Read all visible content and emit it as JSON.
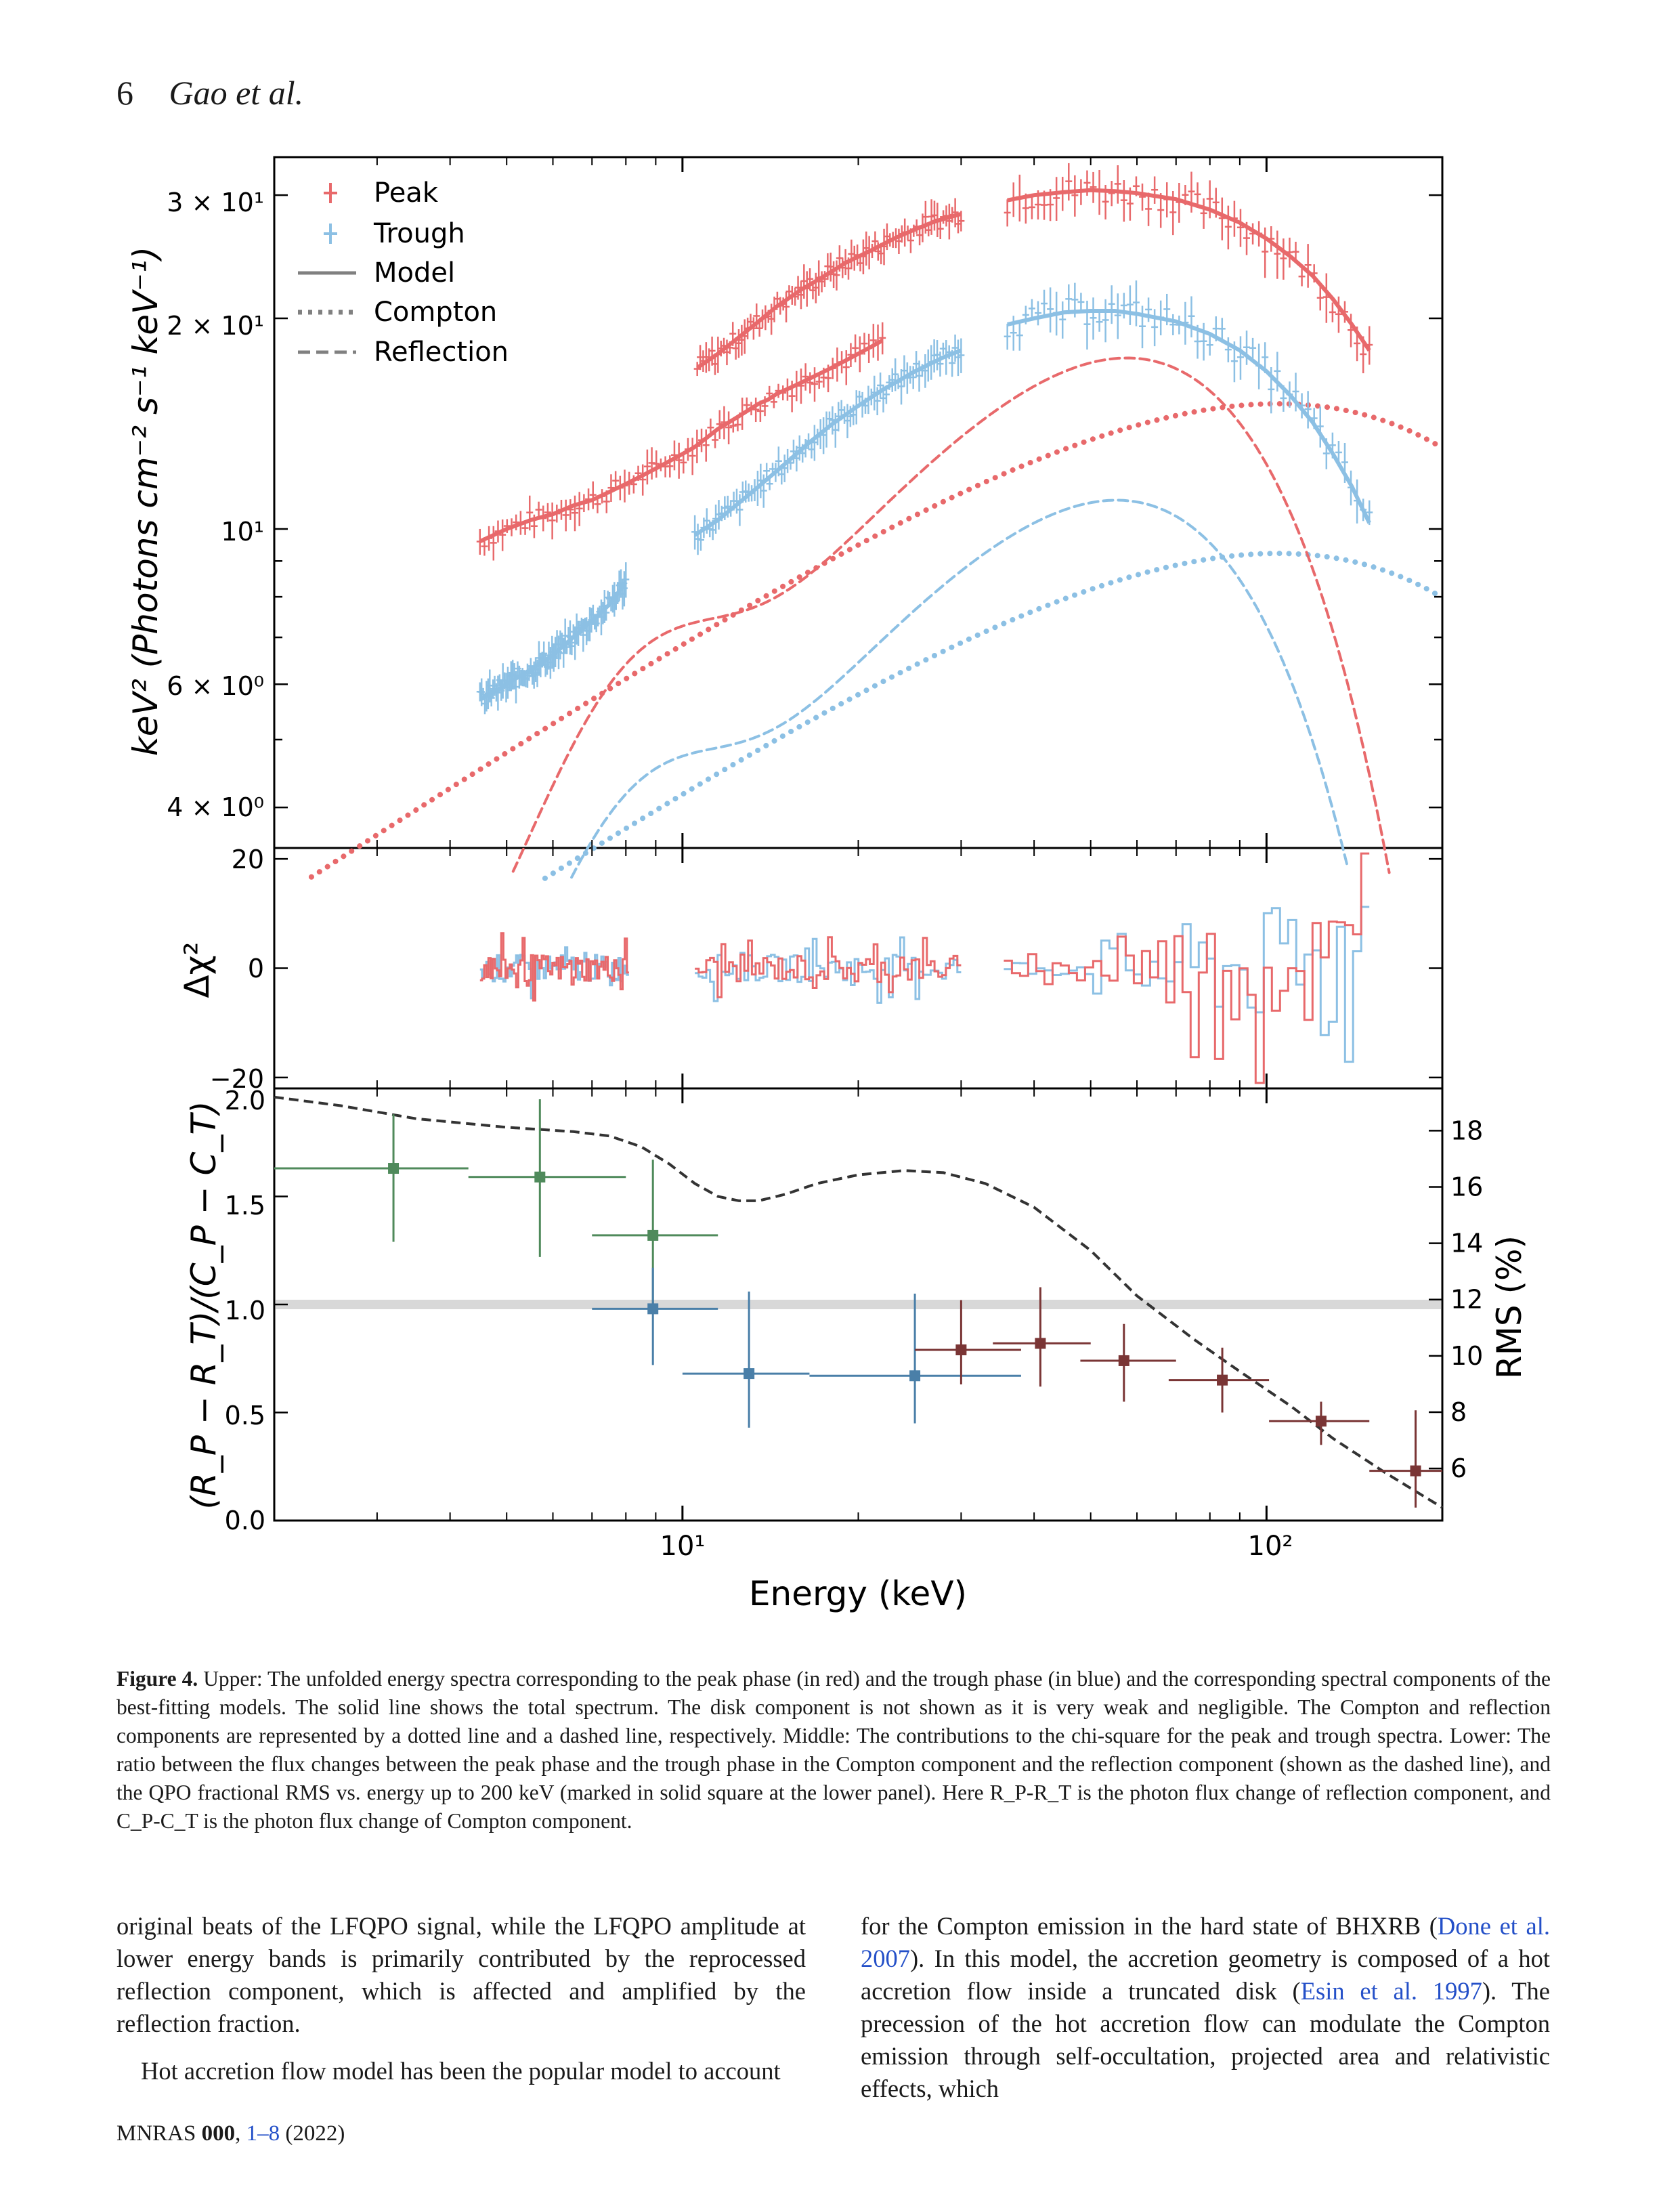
{
  "header": {
    "page_number": "6",
    "authors": "Gao et al."
  },
  "figure": {
    "legend": {
      "peak": "Peak",
      "trough": "Trough",
      "model": "Model",
      "compton": "Compton",
      "reflection": "Reflection"
    },
    "colors": {
      "peak": "#e8696b",
      "trough": "#8cc0e4",
      "green": "#4f8a5b",
      "steel": "#4a7fa8",
      "maroon": "#7a3535",
      "rms_line": "#333333",
      "unity_band": "#d8d8d8"
    }
  },
  "chart_data": [
    {
      "type": "scatter",
      "panel": "upper",
      "ylabel": "keV² (Photons cm⁻² s⁻¹ keV⁻¹)",
      "yscale": "log",
      "xscale": "log",
      "xlim": [
        4.5,
        200
      ],
      "ylim": [
        3.5,
        34
      ],
      "ytick_labels": [
        "3 × 10¹",
        "2 × 10¹",
        "10¹",
        "6 × 10⁰",
        "4 × 10⁰"
      ],
      "series": [
        {
          "name": "Peak",
          "segments": [
            {
              "x": [
                4.5,
                5,
                5.5,
                6,
                6.5,
                7,
                7.5,
                8,
                8.5,
                9,
                9.5,
                10,
                10.5,
                11,
                11.5,
                12,
                12.5,
                13,
                13.5,
                14,
                14.5,
                15,
                15.5,
                16,
                16.5,
                17,
                17.5,
                18,
                18.5,
                19,
                19.5,
                20,
                20.5,
                21,
                21.5,
                22
              ],
              "y": [
                9.6,
                10.0,
                10.3,
                10.5,
                10.8,
                11.0,
                11.3,
                11.6,
                11.9,
                12.2,
                12.5,
                12.8,
                13.1,
                13.5,
                13.9,
                14.2,
                14.5,
                14.8,
                15.1,
                15.3,
                15.6,
                15.8,
                16.0,
                16.2,
                16.4,
                16.6,
                16.8,
                17.0,
                17.2,
                17.4,
                17.6,
                17.8,
                18.0,
                18.2,
                18.4,
                18.6
              ]
            },
            {
              "x": [
                10.6,
                11.5,
                12.5,
                13.5,
                14.5,
                16,
                17.5,
                19,
                21,
                23,
                25,
                27,
                30
              ],
              "y": [
                17.0,
                17.8,
                18.8,
                19.8,
                20.8,
                22.0,
                23.0,
                24.0,
                25.0,
                26.0,
                26.8,
                27.5,
                28.2
              ]
            },
            {
              "x": [
                36,
                40,
                45,
                50,
                55,
                60,
                70,
                80,
                90,
                100,
                110,
                120,
                130,
                140,
                150
              ],
              "y": [
                29.5,
                30.0,
                30.3,
                30.5,
                30.4,
                30.2,
                29.6,
                28.6,
                27.4,
                26.0,
                24.5,
                23.0,
                21.3,
                19.6,
                18.0
              ]
            }
          ]
        },
        {
          "name": "Trough",
          "segments": [
            {
              "x": [
                4.5,
                5,
                5.5,
                6,
                6.5,
                7,
                7.5,
                8
              ],
              "y": [
                5.7,
                6.0,
                6.3,
                6.6,
                7.0,
                7.4,
                7.8,
                8.4
              ]
            },
            {
              "x": [
                10.5,
                11.5,
                12.5,
                13.5,
                15,
                16.5,
                18,
                20,
                22,
                25,
                28,
                30
              ],
              "y": [
                9.8,
                10.3,
                10.9,
                11.5,
                12.4,
                13.3,
                14.1,
                15.0,
                15.8,
                16.8,
                17.6,
                18.0
              ]
            },
            {
              "x": [
                36,
                40,
                45,
                50,
                55,
                60,
                70,
                80,
                90,
                100,
                110,
                120,
                130,
                140,
                150
              ],
              "y": [
                19.6,
                20.0,
                20.4,
                20.5,
                20.5,
                20.3,
                19.8,
                19.0,
                18.0,
                16.8,
                15.5,
                14.2,
                12.8,
                11.5,
                10.2
              ]
            }
          ]
        }
      ]
    },
    {
      "type": "line",
      "panel": "middle",
      "ylabel": "Δχ²",
      "ylim": [
        -22,
        22
      ],
      "ytick_labels": [
        "20",
        "0",
        "−20"
      ]
    },
    {
      "type": "scatter",
      "panel": "lower",
      "xlabel": "Energy (keV)",
      "xtick_labels": [
        "10¹",
        "10²"
      ],
      "ylabel": "(R_P − R_T)/(C_P − C_T)",
      "y2label": "RMS (%)",
      "xlim": [
        2,
        200
      ],
      "ylim": [
        0,
        2.0
      ],
      "y2lim": [
        4.15,
        19.5
      ],
      "ytick_labels": [
        "0.0",
        "0.5",
        "1.0",
        "1.5",
        "2.0"
      ],
      "y2tick_labels": [
        "6",
        "8",
        "10",
        "12",
        "14",
        "16",
        "18"
      ],
      "ratio_curve": {
        "x": [
          2,
          2.6,
          3.5,
          5,
          6.5,
          7.5,
          8.5,
          9.5,
          10.5,
          11.5,
          12.5,
          13.5,
          15,
          17,
          20,
          24,
          28,
          33,
          40,
          50,
          60,
          75,
          90,
          110,
          130,
          160,
          200
        ],
        "y": [
          1.96,
          1.92,
          1.86,
          1.82,
          1.8,
          1.78,
          1.73,
          1.65,
          1.56,
          1.5,
          1.48,
          1.48,
          1.51,
          1.56,
          1.6,
          1.62,
          1.61,
          1.56,
          1.45,
          1.25,
          1.04,
          0.84,
          0.69,
          0.53,
          0.38,
          0.22,
          0.06
        ]
      },
      "unity_line": 1.0,
      "points": [
        {
          "group": "green",
          "x": 3.2,
          "xerr": [
            2.0,
            4.3
          ],
          "y": 1.63,
          "yerr": [
            1.29,
            1.88
          ]
        },
        {
          "group": "green",
          "x": 5.7,
          "xerr": [
            4.3,
            8.0
          ],
          "y": 1.59,
          "yerr": [
            1.22,
            1.95
          ]
        },
        {
          "group": "green",
          "x": 8.9,
          "xerr": [
            7.0,
            11.5
          ],
          "y": 1.32,
          "yerr": [
            0.98,
            1.67
          ]
        },
        {
          "group": "steel",
          "x": 8.9,
          "xerr": [
            7.0,
            11.5
          ],
          "y": 0.98,
          "yerr": [
            0.72,
            1.17
          ]
        },
        {
          "group": "steel",
          "x": 13.0,
          "xerr": [
            10.0,
            16.5
          ],
          "y": 0.68,
          "yerr": [
            0.43,
            1.06
          ]
        },
        {
          "group": "steel",
          "x": 25.0,
          "xerr": [
            16.5,
            38.0
          ],
          "y": 0.67,
          "yerr": [
            0.45,
            1.05
          ]
        },
        {
          "group": "maroon",
          "x": 30.0,
          "xerr": [
            25.0,
            38.0
          ],
          "y": 0.79,
          "yerr": [
            0.63,
            1.02
          ]
        },
        {
          "group": "maroon",
          "x": 41.0,
          "xerr": [
            34.0,
            50.0
          ],
          "y": 0.82,
          "yerr": [
            0.62,
            1.08
          ]
        },
        {
          "group": "maroon",
          "x": 57.0,
          "xerr": [
            48.0,
            70.0
          ],
          "y": 0.74,
          "yerr": [
            0.55,
            0.91
          ]
        },
        {
          "group": "maroon",
          "x": 84.0,
          "xerr": [
            68.0,
            101.0
          ],
          "y": 0.65,
          "yerr": [
            0.5,
            0.8
          ]
        },
        {
          "group": "maroon",
          "x": 124.0,
          "xerr": [
            101.0,
            150.0
          ],
          "y": 0.46,
          "yerr": [
            0.35,
            0.55
          ]
        },
        {
          "group": "maroon",
          "x": 180.0,
          "xerr": [
            150.0,
            200.0
          ],
          "y": 0.23,
          "yerr": [
            0.06,
            0.51
          ]
        }
      ]
    }
  ],
  "caption": {
    "label": "Figure 4.",
    "text": "Upper: The unfolded energy spectra corresponding to the peak phase (in red) and the trough phase (in blue) and the corresponding spectral components of the best-fitting models. The solid line shows the total spectrum. The disk component is not shown as it is very weak and negligible. The Compton and reflection components are represented by a dotted line and a dashed line, respectively. Middle: The contributions to the chi-square for the peak and trough spectra. Lower: The ratio between the flux changes between the peak phase and the trough phase in the Compton component and the reflection component (shown as the dashed line), and the QPO fractional RMS vs. energy up to 200 keV (marked in solid square at the lower panel). Here R_P-R_T is the photon flux change of reflection component, and C_P-C_T is the photon flux change of Compton component."
  },
  "body": {
    "left_p1": "original beats of the LFQPO signal, while the LFQPO amplitude at lower energy bands is primarily contributed by the reprocessed reflection component, which is affected and amplified by the reflection fraction.",
    "left_p2": "Hot accretion flow model has been the popular model to account",
    "right_a": "for the Compton emission in the hard state of BHXRB (",
    "right_cite1": "Done et al. 2007",
    "right_b": "). In this model, the accretion geometry is composed of a hot accretion flow inside a truncated disk (",
    "right_cite2": "Esin et al. 1997",
    "right_c": "). The precession of the hot accretion flow can modulate the Compton emission through self-occultation, projected area and relativistic effects, which"
  },
  "footer": {
    "journal": "MNRAS",
    "volume": "000",
    "pages": "1–8",
    "year": "(2022)"
  }
}
